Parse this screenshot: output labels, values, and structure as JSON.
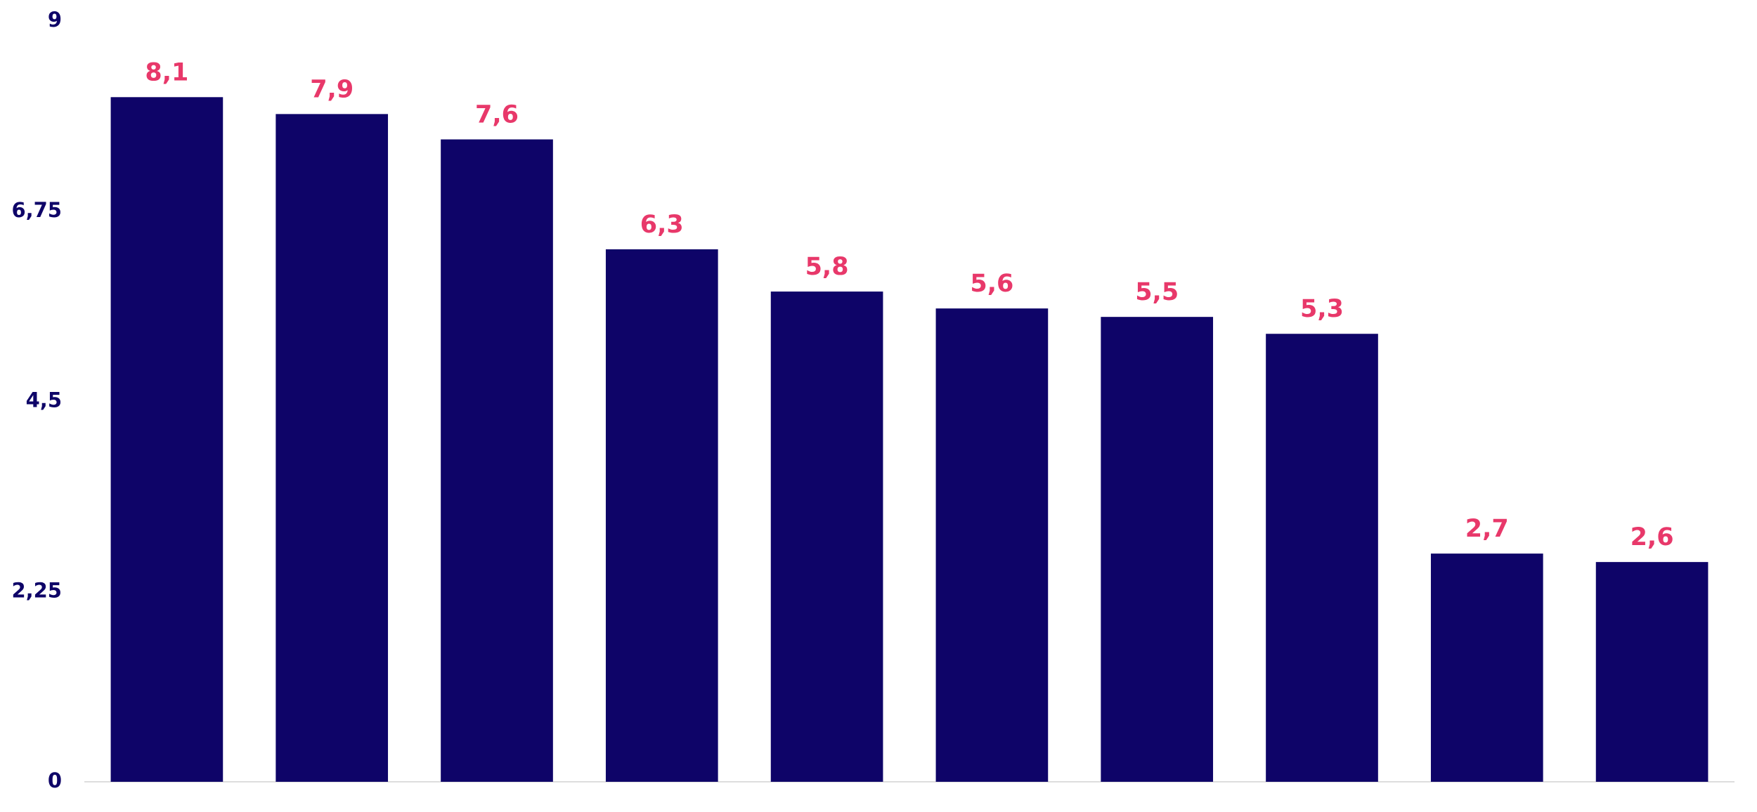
{
  "chart_data": {
    "type": "bar",
    "categories": [
      null,
      null,
      null,
      null,
      null,
      null,
      null,
      null,
      null,
      null
    ],
    "values": [
      8.1,
      7.9,
      7.6,
      6.3,
      5.8,
      5.6,
      5.5,
      5.3,
      2.7,
      2.6
    ],
    "value_labels": [
      "8,1",
      "7,9",
      "7,6",
      "6,3",
      "5,8",
      "5,6",
      "5,5",
      "5,3",
      "2,7",
      "2,6"
    ],
    "color": "#0e0468",
    "value_label_color": "#e8386a",
    "ylim": [
      0,
      9
    ],
    "yticks": [
      0,
      {
        "value": 2.25,
        "label": "2,25"
      },
      {
        "value": 4.5,
        "label": "4,5"
      },
      {
        "value": 6.75,
        "label": "6,75"
      },
      9
    ],
    "grid": false
  }
}
